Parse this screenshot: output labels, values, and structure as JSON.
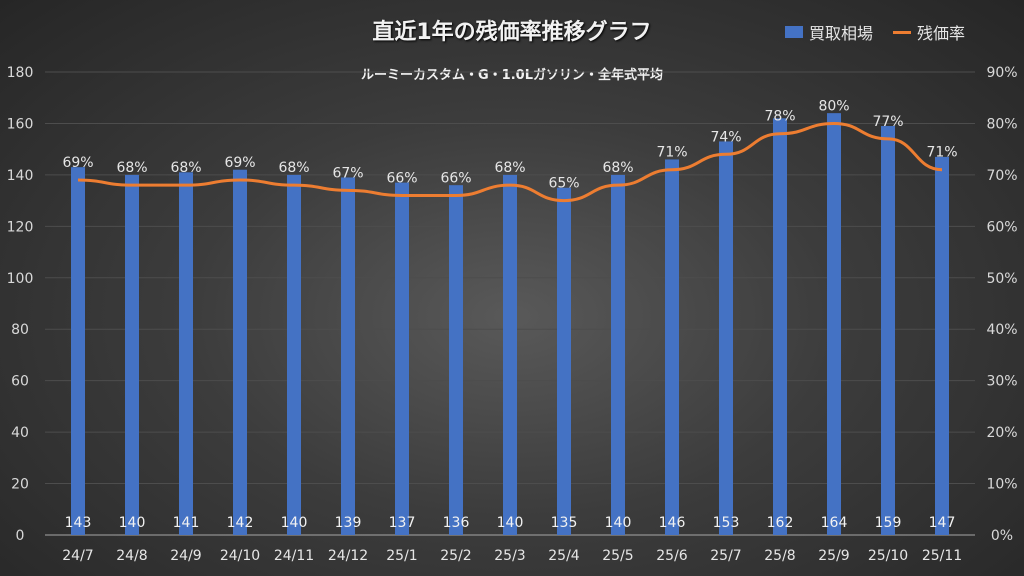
{
  "chart_data": {
    "type": "bar+line",
    "title": "直近1年の残価率推移グラフ",
    "subtitle": "ルーミーカスタム・G・1.0Lガソリン・全年式平均",
    "categories": [
      "24/7",
      "24/8",
      "24/9",
      "24/10",
      "24/11",
      "24/12",
      "25/1",
      "25/2",
      "25/3",
      "25/4",
      "25/5",
      "25/6",
      "25/7",
      "25/8",
      "25/9",
      "25/10",
      "25/11"
    ],
    "series": [
      {
        "name": "買取相場",
        "type": "bar",
        "axis": "left",
        "color": "#4472c4",
        "values": [
          143,
          140,
          141,
          142,
          140,
          139,
          137,
          136,
          140,
          135,
          140,
          146,
          153,
          162,
          164,
          159,
          147
        ]
      },
      {
        "name": "残価率",
        "type": "line",
        "axis": "right",
        "color": "#ed7d31",
        "values": [
          69,
          68,
          68,
          69,
          68,
          67,
          66,
          66,
          68,
          65,
          68,
          71,
          74,
          78,
          80,
          77,
          71
        ]
      }
    ],
    "ylim": [
      0,
      180
    ],
    "yticks": [
      0,
      20,
      40,
      60,
      80,
      100,
      120,
      140,
      160,
      180
    ],
    "y2lim": [
      0,
      90
    ],
    "y2ticks": [
      "0%",
      "10%",
      "20%",
      "30%",
      "40%",
      "50%",
      "60%",
      "70%",
      "80%",
      "90%"
    ],
    "legend": "top-right",
    "grid": true
  }
}
